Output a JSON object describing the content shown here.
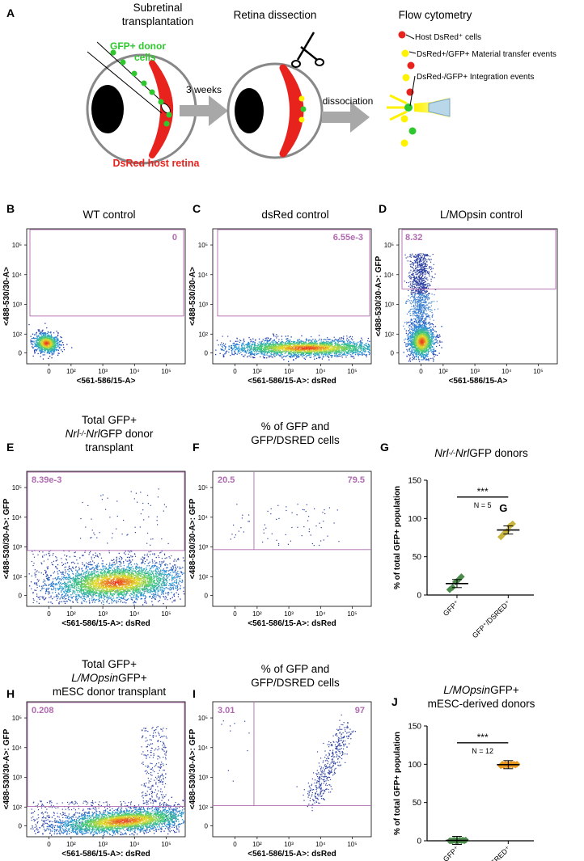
{
  "panel_a": {
    "label": "A",
    "step1_title": [
      "Subretinal",
      "transplantation"
    ],
    "step2_title": "Retina dissection",
    "step3_title": "Flow cytometry",
    "donor_label": [
      "GFP+ donor",
      "cells"
    ],
    "host_label": "DsRed host retina",
    "arrow1_label": "3 weeks",
    "arrow2_label": "dissociation",
    "event_labels": [
      "Host DsRed⁺ cells",
      "DsRed+/GFP+ Material transfer events",
      "DsRed-/GFP+ Integration events"
    ]
  },
  "flow_plots": [
    {
      "id": "B",
      "title": [
        "WT control"
      ],
      "ylabel": "<488-530/30-A>",
      "xlabel": "<561-586/15-A>",
      "gates": [
        "0"
      ]
    },
    {
      "id": "C",
      "title": [
        "dsRed control"
      ],
      "ylabel": "<488-530/30-A>",
      "xlabel": "<561-586/15-A>: dsRed",
      "gates": [
        "6.55e-3"
      ]
    },
    {
      "id": "D",
      "title": [
        "L/MOpsin control"
      ],
      "ylabel": "<488-530/30-A>: GFP",
      "xlabel": "<561-586/15-A>",
      "gates": [
        "8.32"
      ]
    },
    {
      "id": "E",
      "title": [
        "Total GFP+",
        "Nrl⁻/⁻NrlGFP donor",
        "transplant"
      ],
      "ylabel": "<488-530/30-A>: GFP",
      "xlabel": "<561-586/15-A>: dsRed",
      "gates": [
        "8.39e-3"
      ]
    },
    {
      "id": "F",
      "title": [
        "% of GFP and",
        "GFP/DSRED cells"
      ],
      "ylabel": "<488-530/30-A>: GFP",
      "xlabel": "<561-586/15-A>: dsRed",
      "gates": [
        "20.5",
        "79.5"
      ]
    },
    {
      "id": "H",
      "title": [
        "Total GFP+",
        "L/MOpsinGFP+",
        "mESC donor transplant"
      ],
      "ylabel": "<488-530/30-A>: GFP",
      "xlabel": "<561-586/15-A>: dsRed",
      "gates": [
        "0.208"
      ]
    },
    {
      "id": "I",
      "title": [
        "% of GFP and",
        "GFP/DSRED cells"
      ],
      "ylabel": "<488-530/30-A>: GFP",
      "xlabel": "<561-586/15-A>: dsRed",
      "gates": [
        "3.01",
        "97"
      ]
    }
  ],
  "axis_ticks": {
    "x": [
      "0",
      "10²",
      "10³",
      "10⁴",
      "10⁵"
    ],
    "y": [
      "0",
      "10²",
      "10³",
      "10⁴",
      "10⁵"
    ]
  },
  "chart_data": [
    {
      "type": "scatter",
      "panel": "G",
      "title": "Nrl⁻/⁻NrlGFP donors",
      "inner_label": "G",
      "ylabel": "% of total GFP+ population",
      "categories": [
        "GFP⁺",
        "GFP⁺/DSRED⁺"
      ],
      "ylim": [
        0,
        150
      ],
      "yticks": [
        0,
        50,
        100,
        150
      ],
      "series": [
        {
          "name": "GFP⁺",
          "color": "#4e8c4e",
          "values": [
            7,
            10,
            17,
            20,
            24
          ],
          "mean": 15
        },
        {
          "name": "GFP⁺/DSRED⁺",
          "color": "#c8b43c",
          "values": [
            76,
            80,
            83,
            90,
            93
          ],
          "mean": 85
        }
      ],
      "significance": "***",
      "n_label": "N = 5"
    },
    {
      "type": "scatter",
      "panel": "J",
      "title": [
        "L/MOpsinGFP+",
        "mESC-derived donors"
      ],
      "ylabel": "% of total GFP+ population",
      "categories": [
        "GFP⁺",
        "GFP⁺/DSRED⁺"
      ],
      "ylim": [
        0,
        150
      ],
      "yticks": [
        0,
        50,
        100,
        150
      ],
      "series": [
        {
          "name": "GFP⁺",
          "color": "#4e8c4e",
          "values": [
            0,
            0,
            0,
            0,
            0,
            0,
            0,
            1,
            1,
            1,
            1,
            1
          ],
          "mean": 0.5
        },
        {
          "name": "GFP⁺/DSRED⁺",
          "color": "#e8961e",
          "values": [
            98,
            98,
            99,
            99,
            99,
            99,
            100,
            100,
            100,
            100,
            100,
            100
          ],
          "mean": 99.5
        }
      ],
      "significance": "***",
      "n_label": "N = 12"
    }
  ],
  "colors": {
    "gate": "#b06bb0",
    "host": "#e8231e",
    "donor": "#2ec82e",
    "yellow": "#f2e61e",
    "arrow": "#a8a8a8"
  }
}
